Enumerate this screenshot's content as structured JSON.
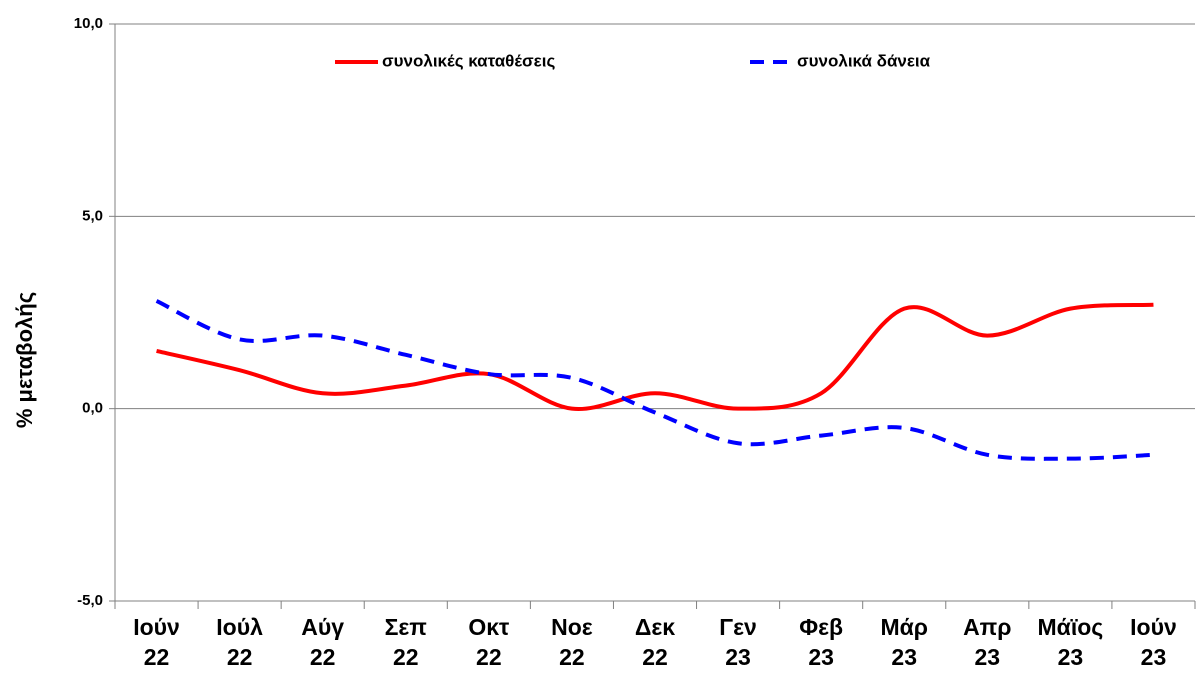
{
  "chart_data": {
    "type": "line",
    "y_label": "% μεταβολής",
    "categories": [
      "Ιούν\n22",
      "Ιούλ\n22",
      "Αύγ\n22",
      "Σεπ\n22",
      "Οκτ\n22",
      "Νοε\n22",
      "Δεκ\n22",
      "Γεν\n23",
      "Φεβ\n23",
      "Μάρ\n23",
      "Απρ\n23",
      "Μάϊος\n23",
      "Ιούν\n23"
    ],
    "series": [
      {
        "name": "συνολικές καταθέσεις",
        "color": "#ff0000",
        "dash": false,
        "values": [
          1.5,
          1.0,
          0.4,
          0.6,
          0.9,
          0.0,
          0.4,
          0.0,
          0.4,
          2.6,
          1.9,
          2.6,
          2.7
        ]
      },
      {
        "name": "συνολικά δάνεια",
        "color": "#0000ff",
        "dash": true,
        "values": [
          2.8,
          1.8,
          1.9,
          1.4,
          0.9,
          0.8,
          -0.1,
          -0.9,
          -0.7,
          -0.5,
          -1.2,
          -1.3,
          -1.2
        ]
      }
    ],
    "ylim": [
      -5,
      10
    ],
    "yticks": [
      {
        "value": -5,
        "label": "-5,0"
      },
      {
        "value": 0,
        "label": "0,0"
      },
      {
        "value": 5,
        "label": "5,0"
      },
      {
        "value": 10,
        "label": "10,0"
      }
    ],
    "grid": true,
    "legend": "top"
  }
}
